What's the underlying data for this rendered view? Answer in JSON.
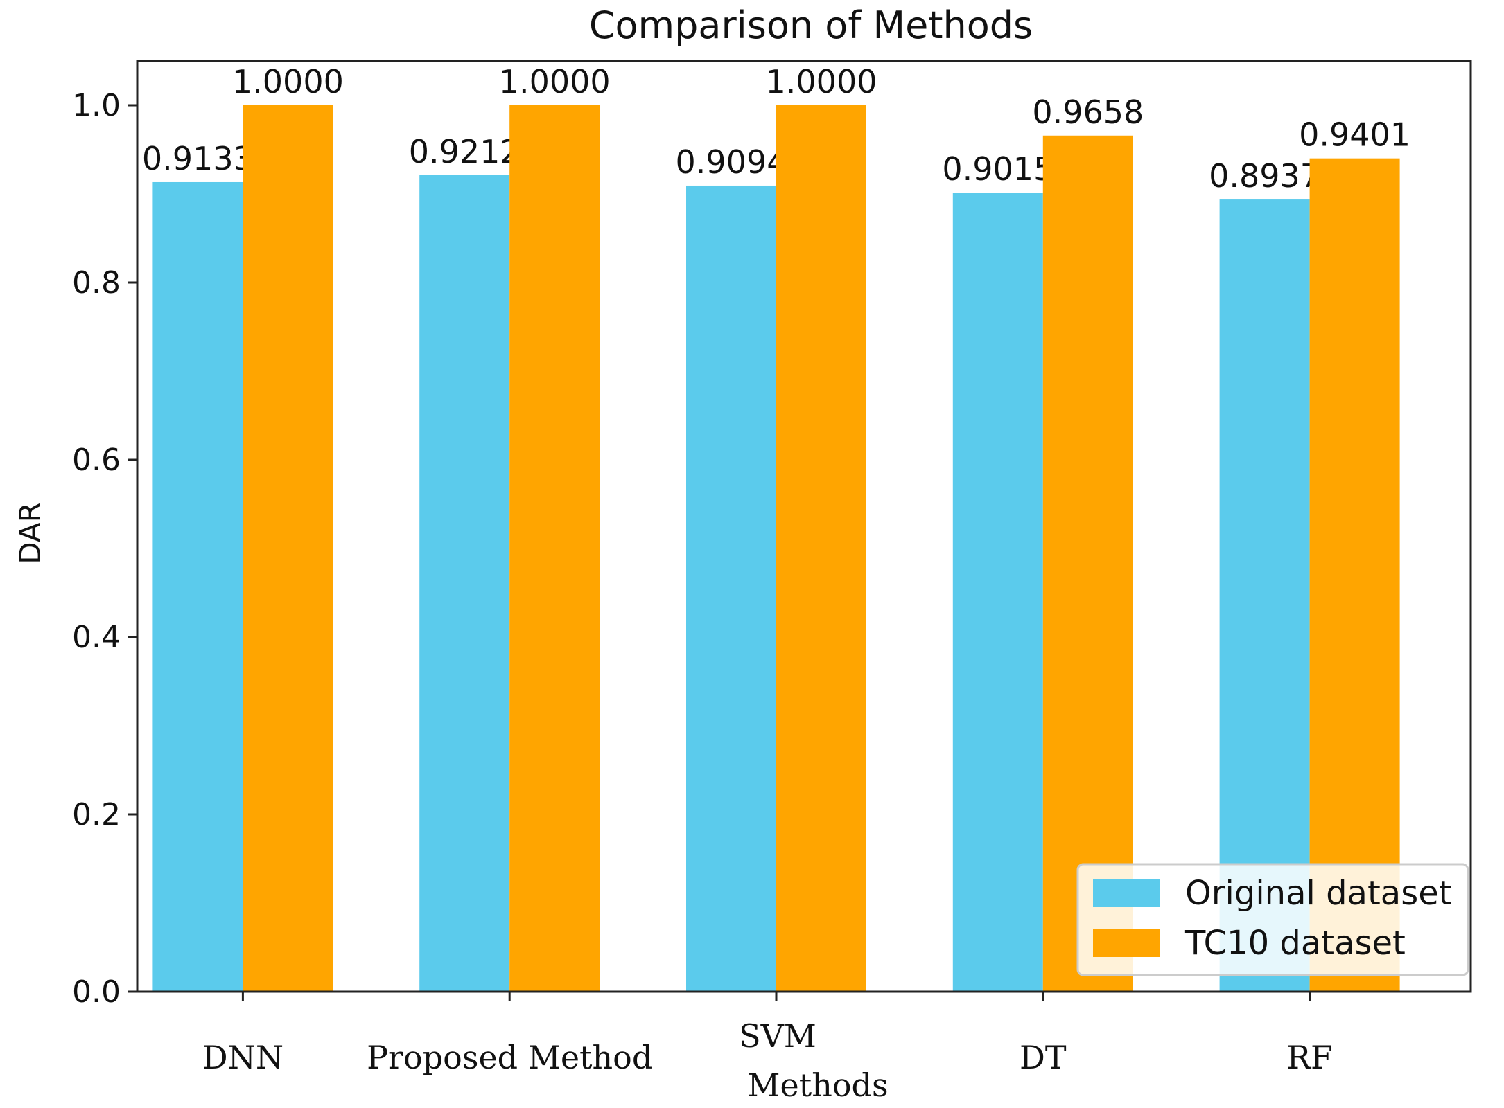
{
  "chart_data": {
    "type": "bar",
    "title": "Comparison of Methods",
    "xlabel": "Methods",
    "ylabel": "DAR",
    "ylim": [
      0,
      1.05
    ],
    "yticks": [
      "0.0",
      "0.2",
      "0.4",
      "0.6",
      "0.8",
      "1.0"
    ],
    "categories": [
      "DNN",
      "Proposed Method",
      "SVM",
      "DT",
      "RF"
    ],
    "series": [
      {
        "name": "Original dataset",
        "color": "#5BCBEC",
        "values": [
          0.9133,
          0.9212,
          0.9094,
          0.9015,
          0.8937
        ],
        "labels": [
          "0.9133",
          "0.9212",
          "0.9094",
          "0.9015",
          "0.8937"
        ]
      },
      {
        "name": "TC10 dataset",
        "color": "#FFA500",
        "values": [
          1.0,
          1.0,
          1.0,
          0.9658,
          0.9401
        ],
        "labels": [
          "1.0000",
          "1.0000",
          "1.0000",
          "0.9658",
          "0.9401"
        ]
      }
    ],
    "legend": {
      "position": "lower-right",
      "entries": [
        "Original dataset",
        "TC10 dataset"
      ]
    },
    "grid": false
  }
}
